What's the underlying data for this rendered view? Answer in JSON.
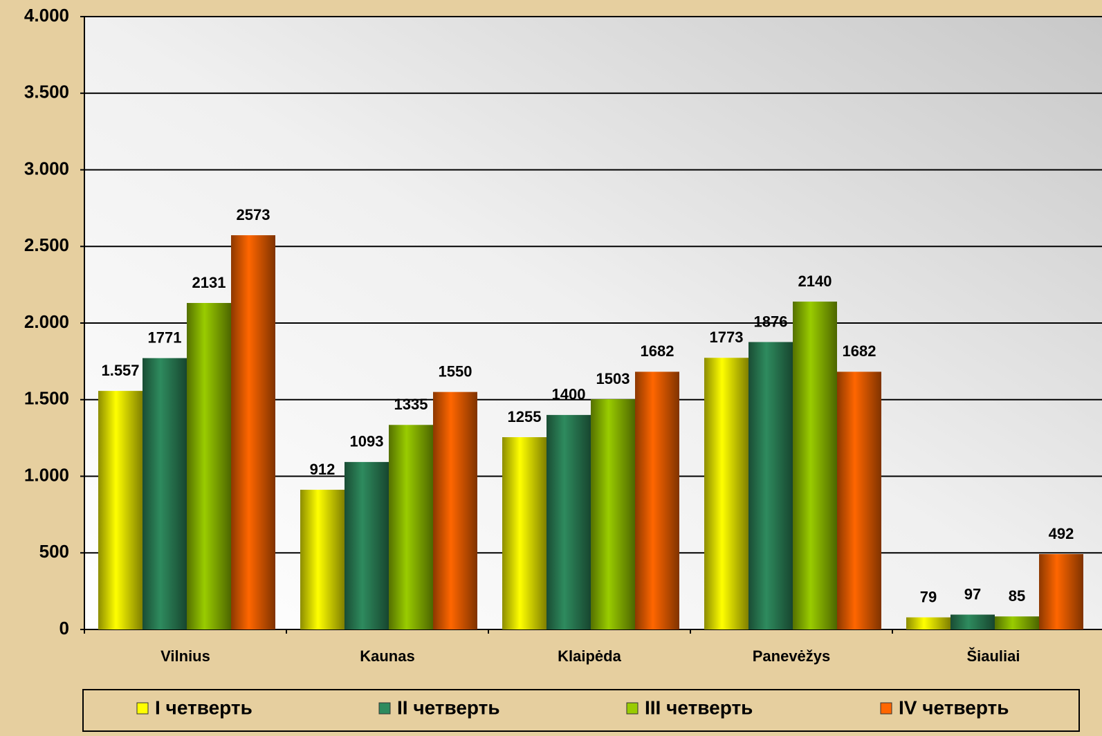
{
  "chart_data": {
    "type": "bar",
    "categories": [
      "Vilnius",
      "Kaunas",
      "Klaipėda",
      "Panevėžys",
      "Šiauliai"
    ],
    "series": [
      {
        "name": "I четверть",
        "color": "#ffff00",
        "values": [
          1557,
          912,
          1255,
          1773,
          79
        ],
        "value_labels": [
          "1.557",
          "912",
          "1255",
          "1773",
          "79"
        ]
      },
      {
        "name": "II четверть",
        "color": "#2e8b5e",
        "values": [
          1771,
          1093,
          1400,
          1876,
          97
        ]
      },
      {
        "name": "III четверть",
        "color": "#99cc00",
        "values": [
          2131,
          1335,
          1503,
          2140,
          85
        ]
      },
      {
        "name": "IV четверть",
        "color": "#ff6600",
        "values": [
          2573,
          1550,
          1682,
          1682,
          492
        ]
      }
    ],
    "ylim": [
      0,
      4000
    ],
    "yticks": [
      0,
      500,
      {
        "value": 1000,
        "label": "1.000"
      },
      {
        "value": 1500,
        "label": "1.500"
      },
      {
        "value": 2000,
        "label": "2.000"
      },
      {
        "value": 2500,
        "label": "2.500"
      },
      {
        "value": 3000,
        "label": "3.000"
      },
      {
        "value": 3500,
        "label": "3.500"
      },
      {
        "value": 4000,
        "label": "4.000"
      }
    ],
    "grid": true,
    "legend": "bottom"
  }
}
